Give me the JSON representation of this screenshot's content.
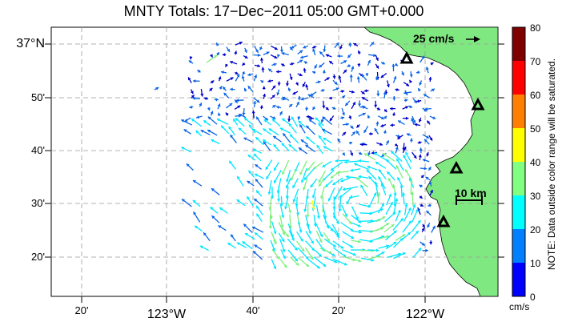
{
  "title": "MNTY Totals: 17−Dec−2011 05:00 GMT+0.000",
  "axes": {
    "y_labels": [
      "37°N",
      "50'",
      "40'",
      "30'",
      "20'"
    ],
    "x_labels": [
      "20'",
      "123°W",
      "40'",
      "20'",
      "122°W"
    ]
  },
  "legend": {
    "arrow_label": "25 cm/s",
    "distance_label": "10 km",
    "colorbar_ticks": [
      "80",
      "70",
      "60",
      "50",
      "40",
      "30",
      "20",
      "10",
      "0"
    ],
    "colorbar_units": "cm/s",
    "colorbar_colors": [
      "#0000ff",
      "#0080ff",
      "#00ffff",
      "#80ff80",
      "#ffff00",
      "#ff8000",
      "#ff0000",
      "#800000"
    ],
    "note": "NOTE: Data outside color range will be saturated."
  },
  "colors": {
    "land": "#80e880",
    "arrow_dark": "#0000cc",
    "arrow_mid": "#0a64e6",
    "arrow_cyan": "#00e5ff",
    "arrow_green": "#7cf07c"
  },
  "stations": [
    "station-north",
    "station-east",
    "station-mid",
    "station-south"
  ]
}
